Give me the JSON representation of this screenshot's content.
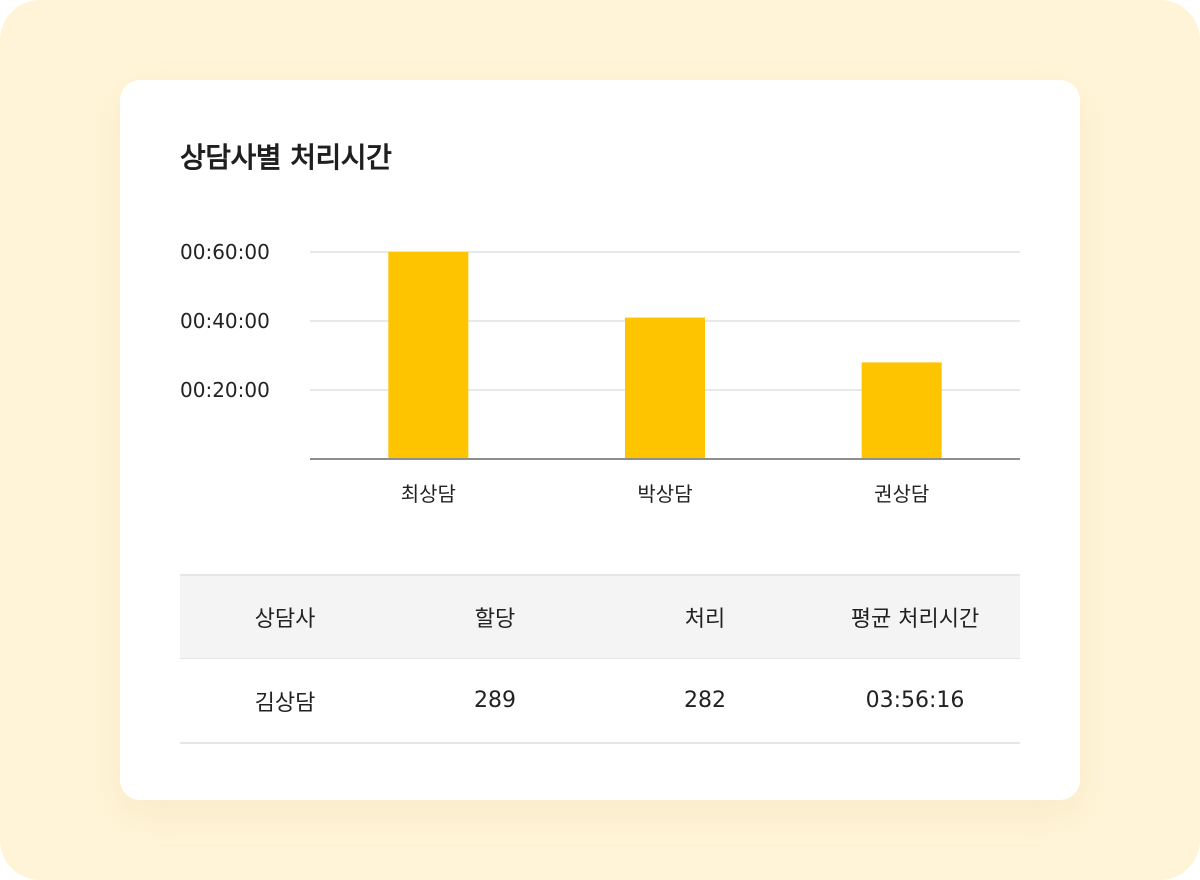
{
  "card": {
    "title": "상담사별 처리시간"
  },
  "chart_data": {
    "type": "bar",
    "title": "상담사별 처리시간",
    "categories": [
      "최상담",
      "박상담",
      "권상담"
    ],
    "values": [
      3600,
      2460,
      1680
    ],
    "ylim": [
      0,
      3600
    ],
    "yticks": [
      1200,
      2400,
      3600
    ],
    "ytick_labels": [
      "00:20:00",
      "00:40:00",
      "00:60:00"
    ],
    "xlabel": "",
    "ylabel": "",
    "grid": true,
    "colors": {
      "bar": "#FFC400",
      "grid": "#E8E8E8",
      "axis": "#8E8E8E",
      "text": "#222222"
    }
  },
  "table": {
    "headers": [
      "상담사",
      "할당",
      "처리",
      "평균 처리시간"
    ],
    "rows": [
      [
        "김상담",
        "289",
        "282",
        "03:56:16"
      ]
    ]
  }
}
